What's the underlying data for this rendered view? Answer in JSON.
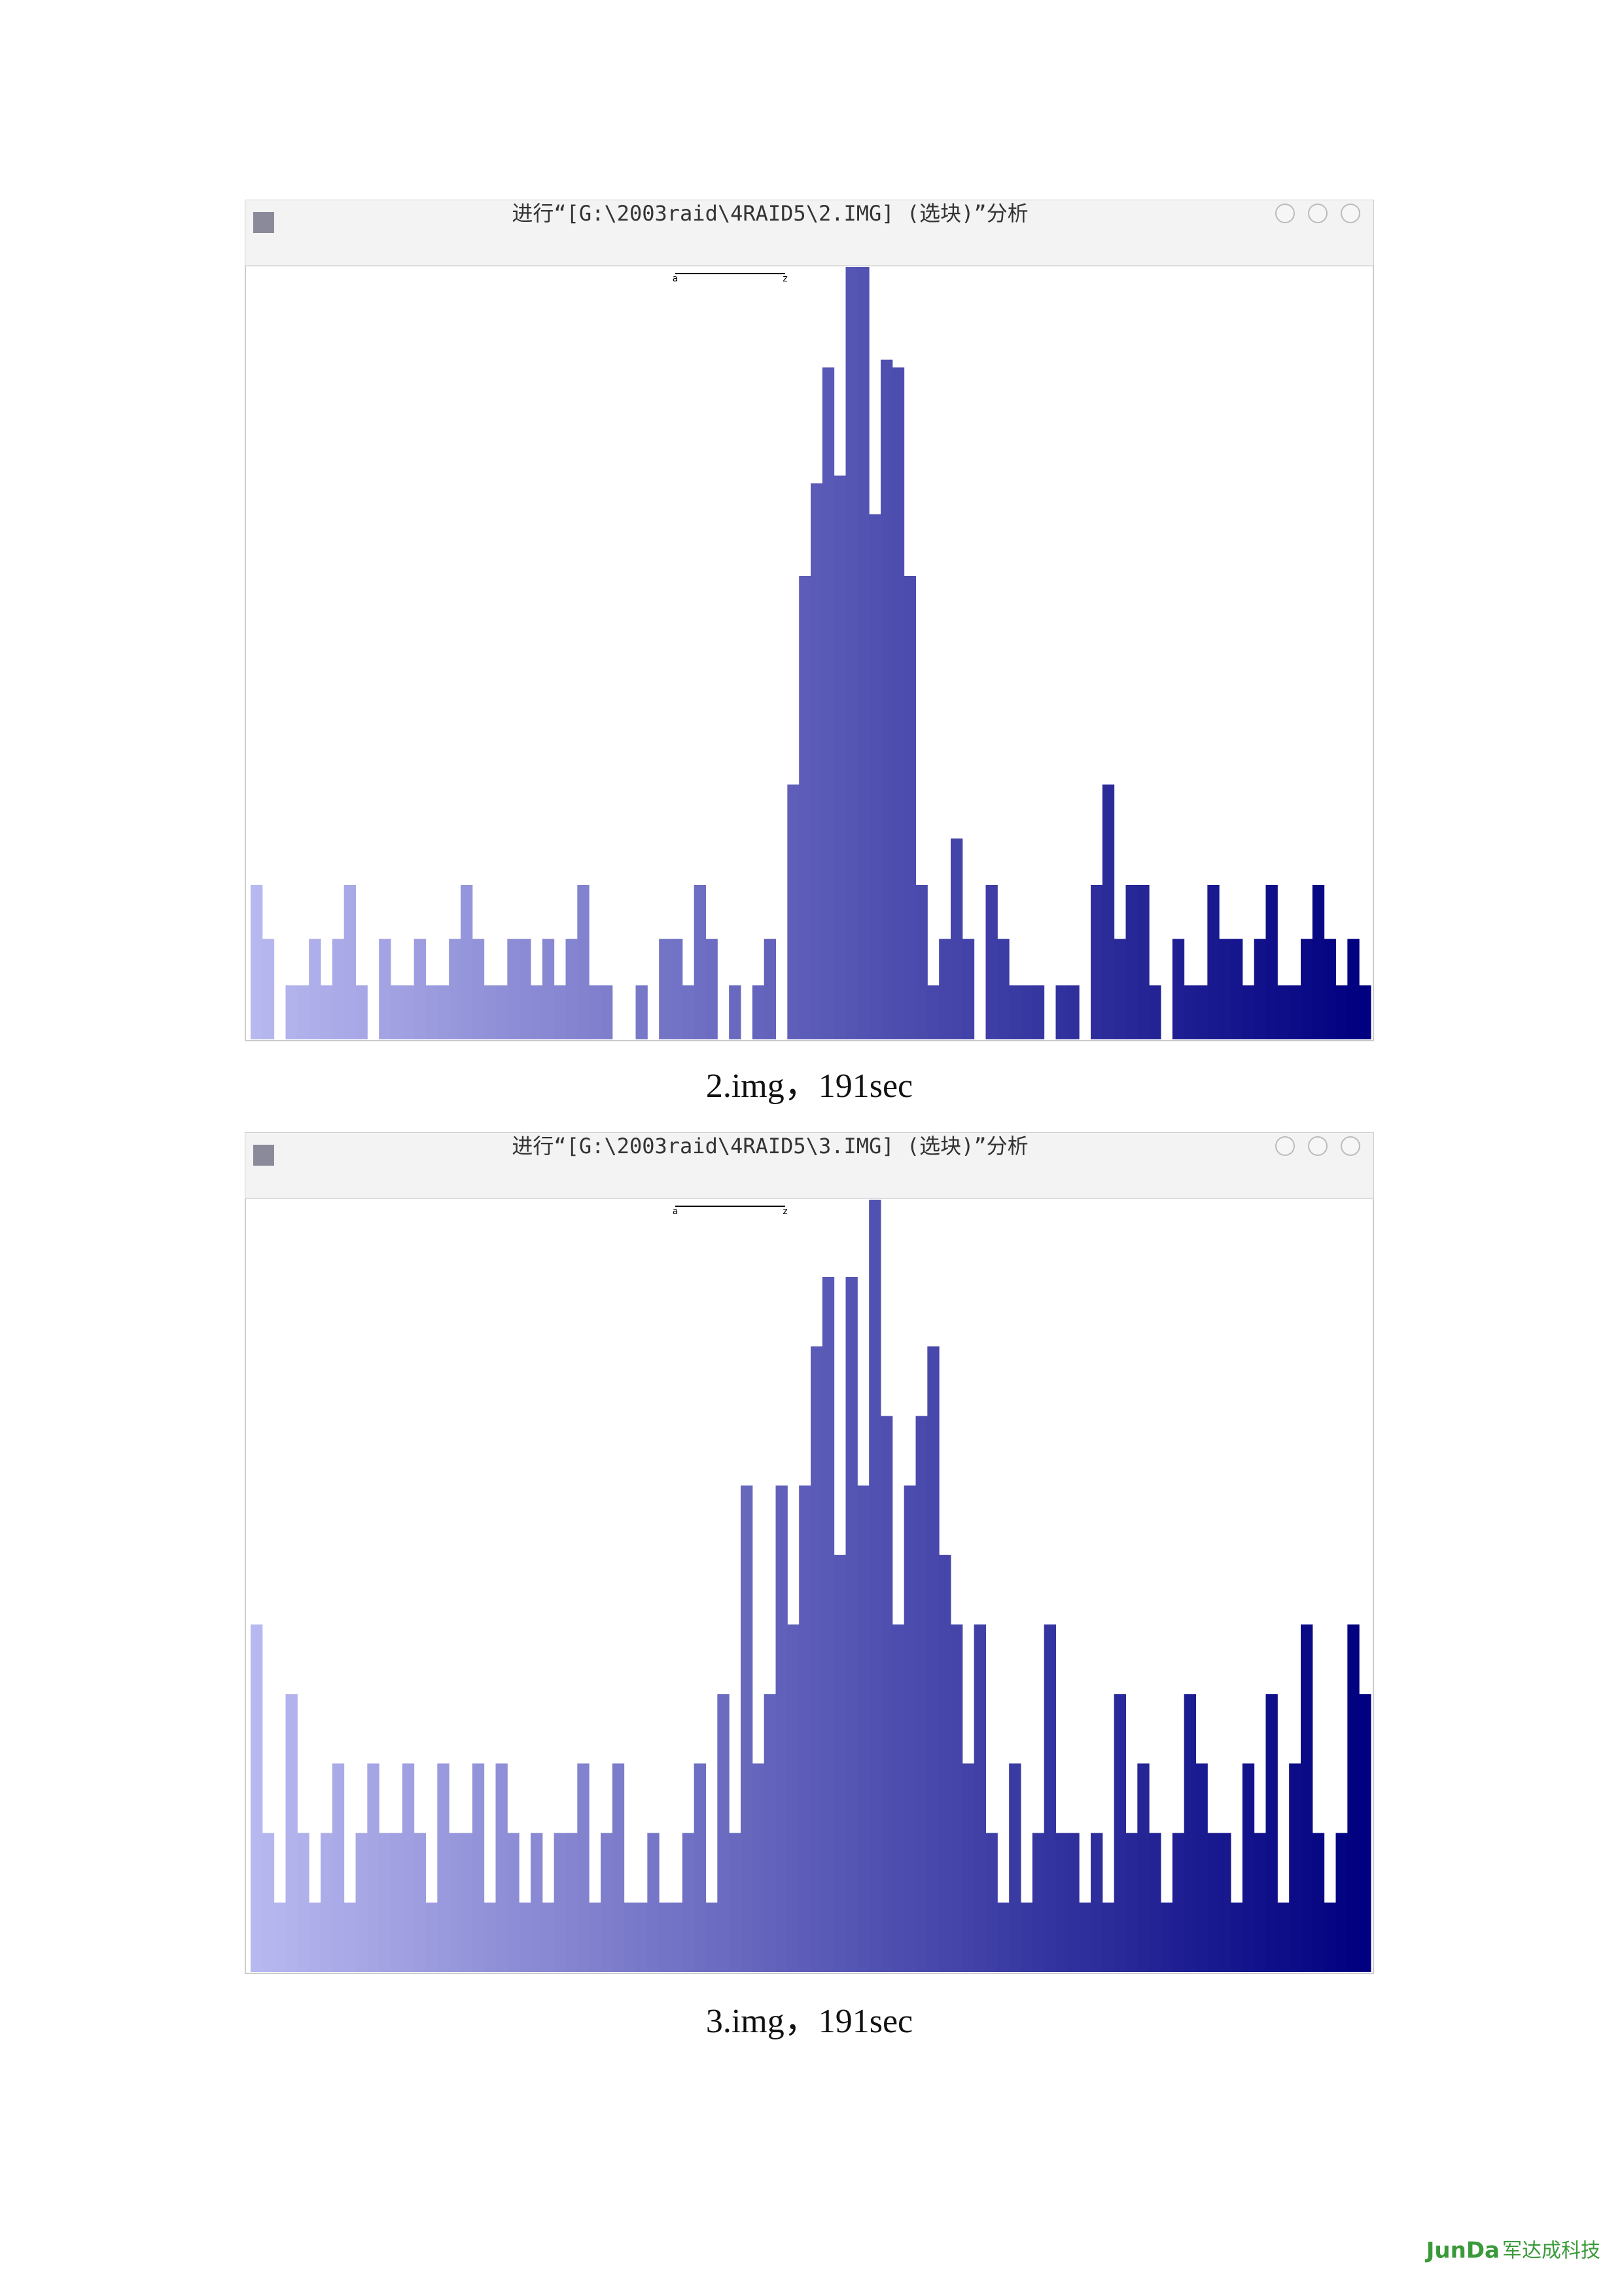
{
  "chart_data": [
    {
      "type": "bar",
      "title": "进行“[G:\\2003raid\\4RAID5\\2.IMG] (选块)”分析",
      "caption": "2.img，191sec",
      "range_labels": [
        "a",
        "z"
      ],
      "ylim": [
        0,
        100
      ],
      "color_gradient": [
        "#b8b8f0",
        "#000080"
      ],
      "values": [
        20,
        13,
        0,
        7,
        7,
        13,
        7,
        13,
        20,
        7,
        0,
        13,
        7,
        7,
        13,
        7,
        7,
        13,
        20,
        13,
        7,
        7,
        13,
        13,
        7,
        13,
        7,
        13,
        20,
        7,
        7,
        0,
        0,
        7,
        0,
        13,
        13,
        7,
        20,
        13,
        0,
        7,
        0,
        7,
        13,
        0,
        33,
        60,
        72,
        87,
        73,
        100,
        100,
        68,
        88,
        87,
        60,
        20,
        7,
        13,
        26,
        13,
        0,
        20,
        13,
        7,
        7,
        7,
        0,
        7,
        7,
        0,
        20,
        33,
        13,
        20,
        20,
        7,
        0,
        13,
        7,
        7,
        20,
        13,
        13,
        7,
        13,
        20,
        7,
        7,
        13,
        20,
        13,
        7,
        13,
        7
      ]
    },
    {
      "type": "bar",
      "title": "进行“[G:\\2003raid\\4RAID5\\3.IMG] (选块)”分析",
      "caption": "3.img，191sec",
      "range_labels": [
        "a",
        "z"
      ],
      "ylim": [
        0,
        100
      ],
      "color_gradient": [
        "#b8b8f0",
        "#000080"
      ],
      "values": [
        45,
        18,
        9,
        36,
        18,
        9,
        18,
        27,
        9,
        18,
        27,
        18,
        18,
        27,
        18,
        9,
        27,
        18,
        18,
        27,
        9,
        27,
        18,
        9,
        18,
        9,
        18,
        18,
        27,
        9,
        18,
        27,
        9,
        9,
        18,
        9,
        9,
        18,
        27,
        9,
        36,
        18,
        63,
        27,
        36,
        63,
        45,
        63,
        81,
        90,
        54,
        90,
        63,
        100,
        72,
        45,
        63,
        72,
        81,
        54,
        45,
        27,
        45,
        18,
        9,
        27,
        9,
        18,
        45,
        18,
        18,
        9,
        18,
        9,
        36,
        18,
        27,
        18,
        9,
        18,
        36,
        27,
        18,
        18,
        9,
        27,
        18,
        36,
        9,
        27,
        45,
        18,
        9,
        18,
        45,
        36
      ]
    }
  ],
  "logo": {
    "brand": "JunDa",
    "name": "军达成科技"
  }
}
